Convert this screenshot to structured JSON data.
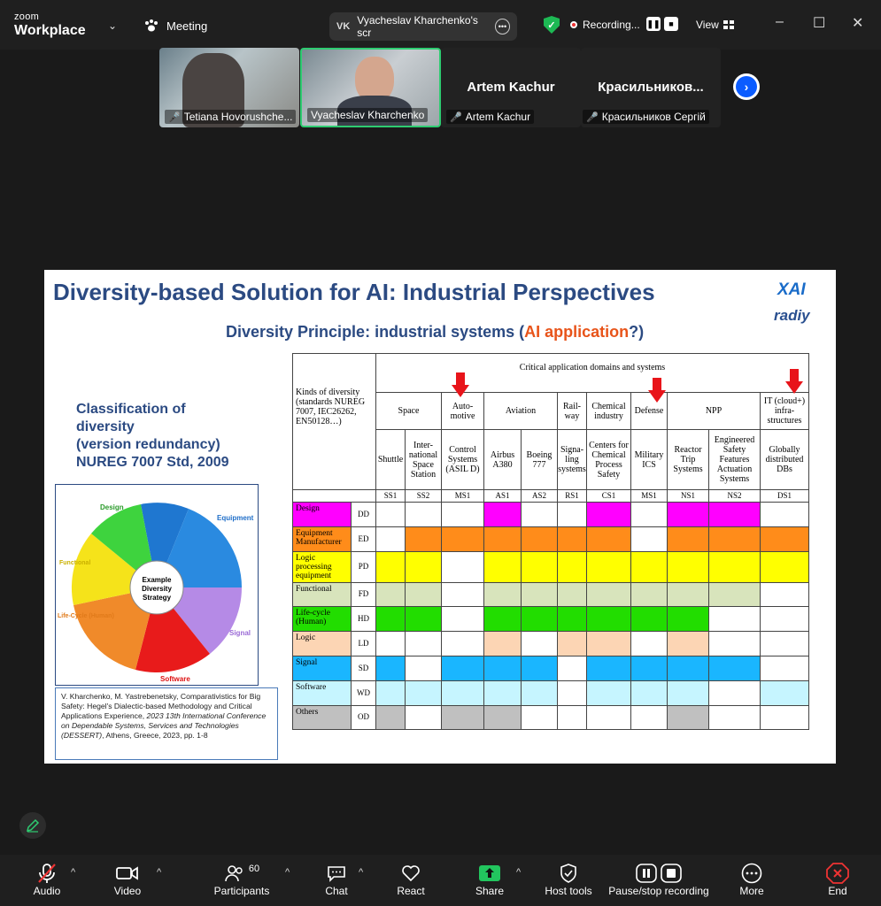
{
  "app": {
    "brand_small": "zoom",
    "brand_big": "Workplace",
    "meeting_label": "Meeting"
  },
  "share_pill": {
    "badge": "VK",
    "label": "Vyacheslav Kharchenko's scr"
  },
  "recording": {
    "label": "Recording..."
  },
  "view_label": "View",
  "video_tiles": [
    {
      "name": "Tetiana Hovorushche...",
      "big": ""
    },
    {
      "name": "Vyacheslav Kharchenko",
      "big": ""
    },
    {
      "name": "Artem Kachur",
      "big": "Artem Kachur"
    },
    {
      "name": "Красильников Сергій",
      "big": "Красильников..."
    }
  ],
  "slide": {
    "title": "Diversity-based Solution for AI: Industrial Perspectives",
    "subtitle_pre": "Diversity Principle: industrial systems (",
    "subtitle_ai": "AI application",
    "subtitle_post": "?)",
    "logo_xai": "XAI",
    "logo_radiy": "radiy",
    "classification": [
      "Classification of",
      "diversity",
      "(version redundancy)",
      "NUREG 7007 Std, 2009"
    ],
    "wheel_center": [
      "Example",
      "Diversity",
      "Strategy"
    ],
    "wheel_sectors": [
      "Design",
      "Equipment",
      "Signal",
      "Software",
      "Life-Cycle (Human)",
      "Functional"
    ],
    "reference": {
      "line1": "V. Kharchenko, M. Yastrebenetsky, Comparativistics for Big Safety: Hegel's Dialectic-based Methodology and Critical Applications Experience,",
      "italic": "2023 13th International Conference on Dependable Systems, Services and Technologies (DESSERT)",
      "line2": ", Athens, Greece, 2023, pp. 1-8"
    },
    "table": {
      "kinds_header": "Kinds of diversity (standards NUREG 7007, IEC26262, EN50128…)",
      "domains_header": "Critical application domains and systems",
      "domains": [
        {
          "name": "Space",
          "span": 2
        },
        {
          "name": "Auto-motive",
          "span": 1
        },
        {
          "name": "Aviation",
          "span": 2
        },
        {
          "name": "Rail-way",
          "span": 1
        },
        {
          "name": "Chemical industry",
          "span": 1
        },
        {
          "name": "Defense",
          "span": 1
        },
        {
          "name": "NPP",
          "span": 2
        },
        {
          "name": "IT (cloud+) infra-structures",
          "span": 1
        }
      ],
      "systems": [
        "Shuttle",
        "Inter-national Space Station",
        "Control Systems (ASIL D)",
        "Airbus A380",
        "Boeing 777",
        "Signa-ling systems",
        "Centers for Chemical Process Safety",
        "Military ICS",
        "Reactor Trip Systems",
        "Engineered Safety Features Actuation Systems",
        "Globally distributed DBs"
      ],
      "codes": [
        "SS1",
        "SS2",
        "MS1",
        "AS1",
        "AS2",
        "RS1",
        "CS1",
        "MS1",
        "NS1",
        "NS2",
        "DS1"
      ],
      "rows": [
        {
          "label": "Design",
          "code": "DD",
          "color": "#ff00ff",
          "cells": [
            0,
            0,
            0,
            1,
            0,
            0,
            1,
            0,
            1,
            1,
            0
          ]
        },
        {
          "label": "Equipment Manufacturer",
          "code": "ED",
          "color": "#ff8c1a",
          "cells": [
            0,
            1,
            1,
            1,
            1,
            1,
            1,
            0,
            1,
            1,
            1
          ]
        },
        {
          "label": "Logic processing equipment",
          "code": "PD",
          "color": "#ffff00",
          "cells": [
            1,
            1,
            0,
            1,
            1,
            1,
            1,
            1,
            1,
            1,
            1
          ]
        },
        {
          "label": "Functional",
          "code": "FD",
          "color": "#d8e4bc",
          "cells": [
            1,
            1,
            0,
            1,
            1,
            1,
            1,
            1,
            1,
            1,
            0
          ]
        },
        {
          "label": "Life-cycle (Human)",
          "code": "HD",
          "color": "#22dd00",
          "cells": [
            1,
            1,
            0,
            1,
            1,
            1,
            1,
            1,
            1,
            0,
            0
          ]
        },
        {
          "label": "Logic",
          "code": "LD",
          "color": "#fcd5b4",
          "cells": [
            0,
            0,
            0,
            1,
            0,
            1,
            1,
            0,
            1,
            0,
            0
          ]
        },
        {
          "label": "Signal",
          "code": "SD",
          "color": "#1ab6ff",
          "cells": [
            1,
            0,
            1,
            1,
            1,
            0,
            1,
            1,
            1,
            1,
            0
          ]
        },
        {
          "label": "Software",
          "code": "WD",
          "color": "#c6f5ff",
          "cells": [
            1,
            1,
            1,
            1,
            1,
            0,
            1,
            1,
            1,
            0,
            1
          ]
        },
        {
          "label": "Others",
          "code": "OD",
          "color": "#c0c0c0",
          "cells": [
            1,
            0,
            1,
            1,
            0,
            0,
            0,
            0,
            1,
            0,
            0
          ]
        }
      ]
    }
  },
  "toolbar": {
    "audio": "Audio",
    "video": "Video",
    "participants": "Participants",
    "participants_count": "60",
    "chat": "Chat",
    "react": "React",
    "share": "Share",
    "host_tools": "Host tools",
    "record": "Pause/stop recording",
    "more": "More",
    "end": "End"
  }
}
